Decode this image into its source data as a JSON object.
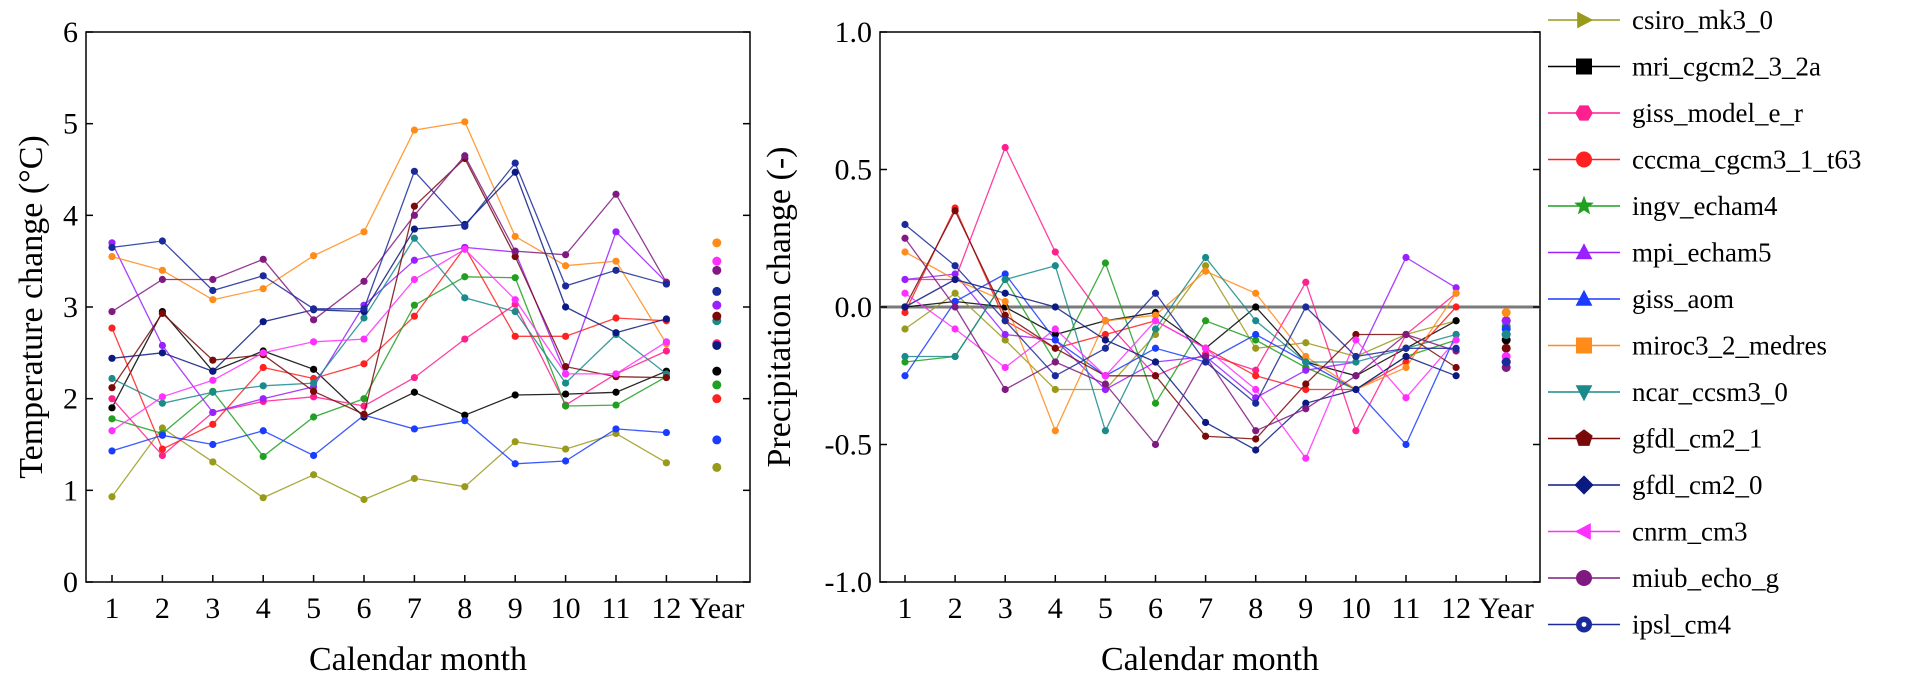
{
  "chart_data": [
    {
      "type": "line",
      "x": [
        "1",
        "2",
        "3",
        "4",
        "5",
        "6",
        "7",
        "8",
        "9",
        "10",
        "11",
        "12",
        "Year"
      ],
      "xlabel": "Calendar month",
      "ylabel": "Temperature change (°C)",
      "ylim": [
        0,
        6
      ],
      "yticks": [
        "0",
        "1",
        "2",
        "3",
        "4",
        "5",
        "6"
      ],
      "series": [
        {
          "name": "csiro_mk3_0",
          "values": [
            0.93,
            1.68,
            1.31,
            0.92,
            1.17,
            0.9,
            1.13,
            1.04,
            1.53,
            1.45,
            1.62,
            1.3,
            1.25
          ]
        },
        {
          "name": "mri_cgcm2_3_2a",
          "values": [
            1.9,
            2.95,
            2.3,
            2.52,
            2.32,
            1.8,
            2.07,
            1.82,
            2.04,
            2.05,
            2.07,
            2.3,
            2.3
          ]
        },
        {
          "name": "giss_model_e_r",
          "values": [
            2.0,
            1.38,
            1.85,
            1.97,
            2.02,
            1.92,
            2.23,
            2.65,
            3.03,
            1.93,
            2.27,
            2.52,
            2.6
          ]
        },
        {
          "name": "cccma_cgcm3_1_t63",
          "values": [
            2.77,
            1.45,
            1.72,
            2.34,
            2.22,
            2.38,
            2.9,
            3.65,
            2.68,
            2.68,
            2.88,
            2.85,
            2.0
          ]
        },
        {
          "name": "ingv_echam4",
          "values": [
            1.78,
            1.62,
            2.08,
            1.37,
            1.8,
            2.0,
            3.02,
            3.33,
            3.32,
            1.92,
            1.93,
            2.24,
            2.15
          ]
        },
        {
          "name": "mpi_echam5",
          "values": [
            3.7,
            2.58,
            1.85,
            2.0,
            2.13,
            3.02,
            3.51,
            3.65,
            3.6,
            2.27,
            3.82,
            3.27,
            3.02
          ]
        },
        {
          "name": "giss_aom",
          "values": [
            1.43,
            1.6,
            1.5,
            1.65,
            1.38,
            1.82,
            1.67,
            1.76,
            1.29,
            1.32,
            1.67,
            1.63,
            1.55
          ]
        },
        {
          "name": "miroc3_2_medres",
          "values": [
            3.55,
            3.4,
            3.08,
            3.2,
            3.56,
            3.82,
            4.93,
            5.02,
            3.77,
            3.45,
            3.5,
            2.6,
            3.7
          ]
        },
        {
          "name": "ncar_ccsm3_0",
          "values": [
            2.22,
            1.95,
            2.07,
            2.14,
            2.17,
            2.88,
            3.75,
            3.1,
            2.95,
            2.17,
            2.7,
            2.27,
            2.85
          ]
        },
        {
          "name": "gfdl_cm2_1",
          "values": [
            2.12,
            2.93,
            2.42,
            2.48,
            2.08,
            1.83,
            4.1,
            4.62,
            3.55,
            2.35,
            2.24,
            2.23,
            2.9
          ]
        },
        {
          "name": "gfdl_cm2_0",
          "values": [
            2.44,
            2.5,
            2.3,
            2.84,
            2.97,
            2.95,
            3.85,
            3.9,
            4.47,
            3.0,
            2.72,
            2.87,
            2.58
          ]
        },
        {
          "name": "cnrm_cm3",
          "values": [
            1.65,
            2.02,
            2.2,
            2.5,
            2.62,
            2.65,
            3.3,
            3.63,
            3.08,
            2.27,
            2.27,
            2.62,
            3.5
          ]
        },
        {
          "name": "miub_echo_g",
          "values": [
            2.95,
            3.3,
            3.3,
            3.52,
            2.86,
            3.28,
            4.0,
            4.65,
            3.61,
            3.57,
            4.23,
            3.27,
            3.4
          ]
        },
        {
          "name": "ipsl_cm4",
          "values": [
            3.65,
            3.72,
            3.18,
            3.34,
            2.98,
            2.98,
            4.48,
            3.88,
            4.57,
            3.23,
            3.4,
            3.25,
            3.17
          ]
        }
      ]
    },
    {
      "type": "line",
      "x": [
        "1",
        "2",
        "3",
        "4",
        "5",
        "6",
        "7",
        "8",
        "9",
        "10",
        "11",
        "12",
        "Year"
      ],
      "xlabel": "Calendar month",
      "ylabel": "Precipitation change (-)",
      "ylim": [
        -1.0,
        1.0
      ],
      "yticks": [
        "-1.0",
        "-0.5",
        "0.0",
        "0.5",
        "1.0"
      ],
      "series": [
        {
          "name": "csiro_mk3_0",
          "values": [
            -0.08,
            0.05,
            -0.12,
            -0.3,
            -0.3,
            -0.1,
            0.15,
            -0.15,
            -0.13,
            -0.18,
            -0.1,
            -0.05,
            -0.05
          ]
        },
        {
          "name": "mri_cgcm2_3_2a",
          "values": [
            0.0,
            0.02,
            0.0,
            -0.1,
            -0.05,
            -0.02,
            -0.15,
            0.0,
            -0.2,
            -0.25,
            -0.15,
            -0.05,
            -0.12
          ]
        },
        {
          "name": "giss_model_e_r",
          "values": [
            0.1,
            0.1,
            0.58,
            0.2,
            -0.05,
            -0.25,
            -0.17,
            -0.23,
            0.09,
            -0.45,
            -0.1,
            0.05,
            -0.1
          ]
        },
        {
          "name": "cccma_cgcm3_1_t63",
          "values": [
            -0.02,
            0.36,
            -0.05,
            -0.15,
            -0.1,
            -0.05,
            -0.15,
            -0.25,
            -0.3,
            -0.3,
            -0.2,
            0.0,
            -0.05
          ]
        },
        {
          "name": "ingv_echam4",
          "values": [
            -0.2,
            -0.18,
            0.1,
            -0.2,
            0.16,
            -0.35,
            -0.05,
            -0.12,
            -0.22,
            -0.3,
            -0.18,
            -0.12,
            -0.07
          ]
        },
        {
          "name": "mpi_echam5",
          "values": [
            0.1,
            0.12,
            -0.1,
            -0.12,
            -0.3,
            -0.2,
            -0.18,
            -0.33,
            -0.23,
            -0.2,
            0.18,
            0.07,
            -0.05
          ]
        },
        {
          "name": "giss_aom",
          "values": [
            -0.25,
            0.02,
            0.12,
            -0.12,
            -0.25,
            -0.15,
            -0.2,
            -0.1,
            -0.2,
            -0.3,
            -0.5,
            -0.1,
            -0.08
          ]
        },
        {
          "name": "miroc3_2_medres",
          "values": [
            0.2,
            0.1,
            0.02,
            -0.45,
            -0.05,
            -0.03,
            0.13,
            0.05,
            -0.18,
            -0.3,
            -0.22,
            0.05,
            -0.02
          ]
        },
        {
          "name": "ncar_ccsm3_0",
          "values": [
            -0.18,
            -0.18,
            0.1,
            0.15,
            -0.45,
            -0.08,
            0.18,
            -0.05,
            -0.2,
            -0.2,
            -0.15,
            -0.1,
            -0.1
          ]
        },
        {
          "name": "gfdl_cm2_1",
          "values": [
            0.0,
            0.35,
            -0.03,
            -0.15,
            -0.25,
            -0.25,
            -0.47,
            -0.48,
            -0.28,
            -0.1,
            -0.1,
            -0.22,
            -0.15
          ]
        },
        {
          "name": "gfdl_cm2_0",
          "values": [
            0.0,
            0.1,
            0.05,
            0.0,
            -0.12,
            -0.2,
            -0.42,
            -0.52,
            -0.35,
            -0.3,
            -0.18,
            -0.25,
            -0.2
          ]
        },
        {
          "name": "cnrm_cm3",
          "values": [
            0.05,
            -0.08,
            -0.22,
            -0.08,
            -0.25,
            -0.05,
            -0.15,
            -0.3,
            -0.55,
            -0.12,
            -0.33,
            -0.12,
            -0.18
          ]
        },
        {
          "name": "miub_echo_g",
          "values": [
            0.25,
            0.0,
            -0.3,
            -0.2,
            -0.28,
            -0.5,
            -0.18,
            -0.45,
            -0.37,
            -0.25,
            -0.1,
            -0.16,
            -0.22
          ]
        },
        {
          "name": "ipsl_cm4",
          "values": [
            0.3,
            0.15,
            -0.05,
            -0.25,
            -0.15,
            0.05,
            -0.2,
            -0.35,
            0.0,
            -0.18,
            -0.15,
            -0.15,
            -0.2
          ]
        }
      ]
    }
  ],
  "legend": {
    "items": [
      {
        "label": "csiro_mk3_0",
        "color": "#9a9a1a",
        "marker": "triangle-right"
      },
      {
        "label": "mri_cgcm2_3_2a",
        "color": "#000000",
        "marker": "square"
      },
      {
        "label": "giss_model_e_r",
        "color": "#ff1f8f",
        "marker": "hexagon"
      },
      {
        "label": "cccma_cgcm3_1_t63",
        "color": "#ff2020",
        "marker": "circle"
      },
      {
        "label": "ingv_echam4",
        "color": "#20a020",
        "marker": "star"
      },
      {
        "label": "mpi_echam5",
        "color": "#9a20ff",
        "marker": "triangle-up"
      },
      {
        "label": "giss_aom",
        "color": "#1a3cff",
        "marker": "triangle-up"
      },
      {
        "label": "miroc3_2_medres",
        "color": "#ff8c1a",
        "marker": "square"
      },
      {
        "label": "ncar_ccsm3_0",
        "color": "#1a8a8a",
        "marker": "triangle-down"
      },
      {
        "label": "gfdl_cm2_1",
        "color": "#7a0a0a",
        "marker": "pentagon"
      },
      {
        "label": "gfdl_cm2_0",
        "color": "#0a1a80",
        "marker": "diamond"
      },
      {
        "label": "cnrm_cm3",
        "color": "#ff30ff",
        "marker": "triangle-left"
      },
      {
        "label": "miub_echo_g",
        "color": "#801a80",
        "marker": "circle"
      },
      {
        "label": "ipsl_cm4",
        "color": "#1a2a9a",
        "marker": "circle-dot"
      }
    ]
  }
}
